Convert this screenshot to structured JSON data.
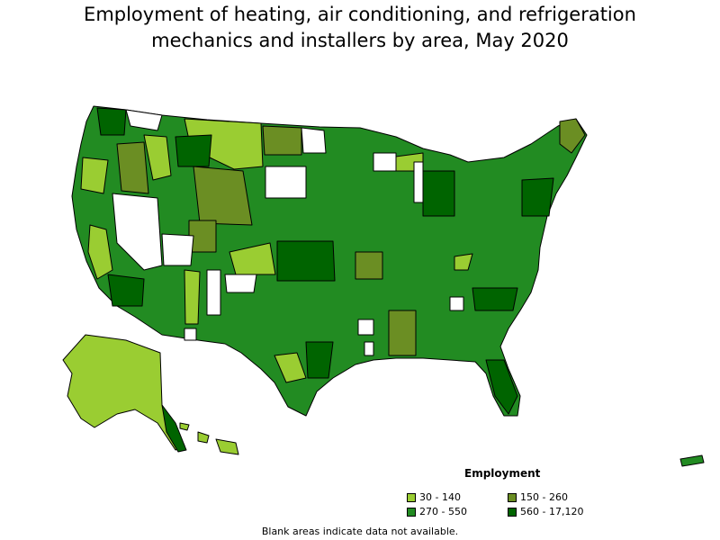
{
  "title_line1": "Employment of heating, air conditioning, and refrigeration",
  "title_line2": "mechanics and installers by area, May 2020",
  "legend": {
    "title": "Employment",
    "items": [
      {
        "label": "30 - 140",
        "color": "#9acd32"
      },
      {
        "label": "150 - 260",
        "color": "#6b8e23"
      },
      {
        "label": "270 - 550",
        "color": "#228b22"
      },
      {
        "label": "560 - 17,120",
        "color": "#006400"
      }
    ]
  },
  "no_data_color": "#ffffff",
  "footnote": "Blank areas indicate data not available."
}
